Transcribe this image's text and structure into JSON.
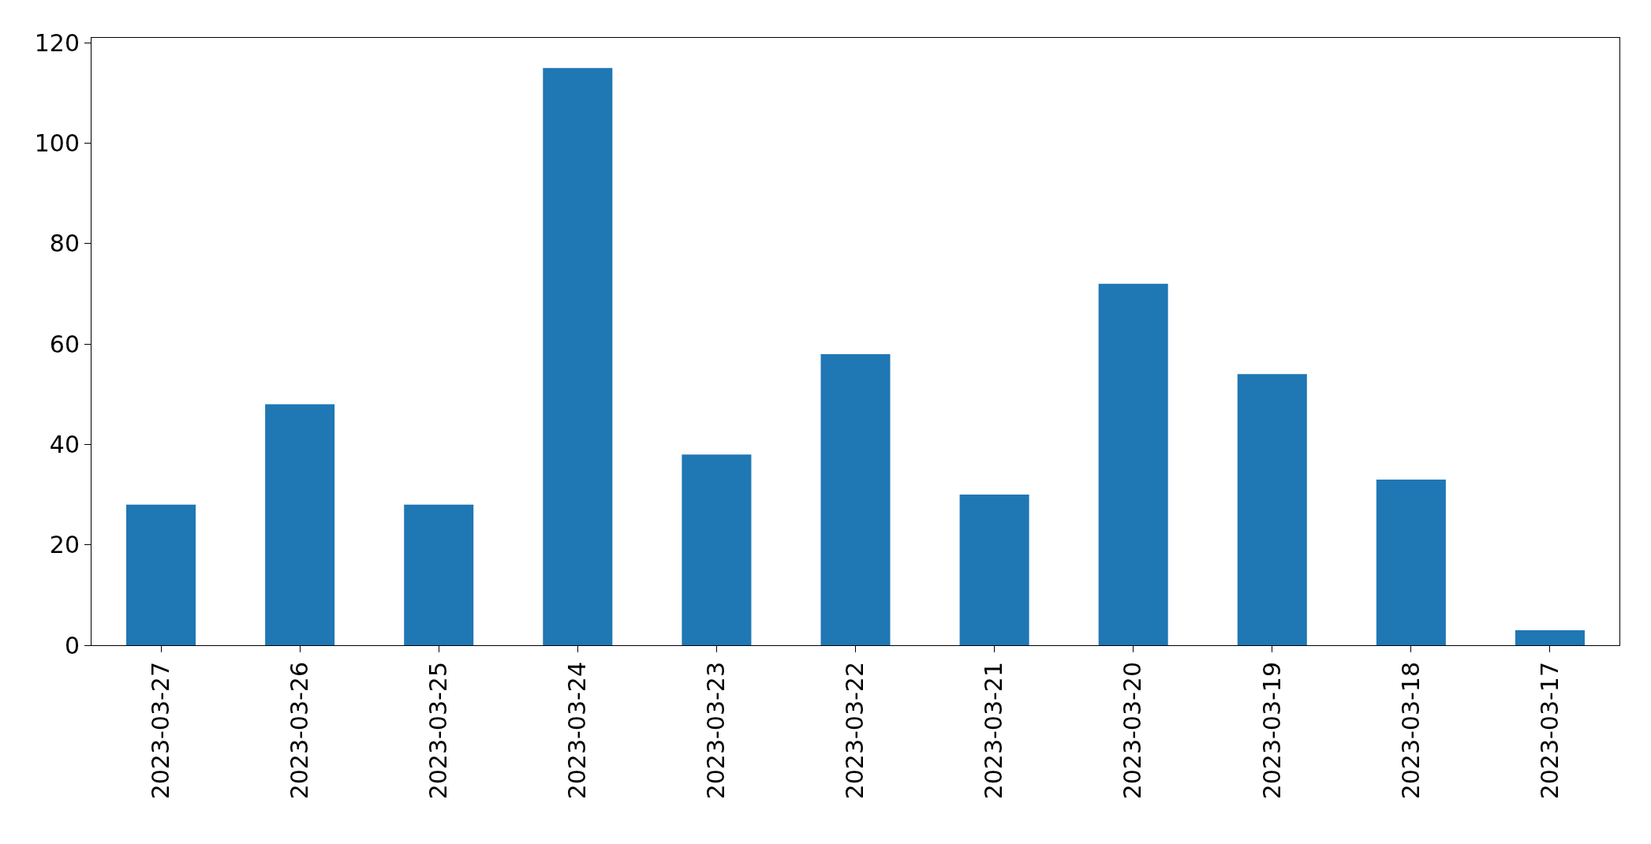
{
  "chart_data": {
    "type": "bar",
    "categories": [
      "2023-03-27",
      "2023-03-26",
      "2023-03-25",
      "2023-03-24",
      "2023-03-23",
      "2023-03-22",
      "2023-03-21",
      "2023-03-20",
      "2023-03-19",
      "2023-03-18",
      "2023-03-17"
    ],
    "values": [
      28,
      48,
      28,
      115,
      38,
      58,
      30,
      72,
      54,
      33,
      3
    ],
    "color": "#1f77b4",
    "ylim": [
      0,
      121
    ],
    "yticks": [
      0,
      20,
      40,
      60,
      80,
      100,
      120
    ]
  }
}
